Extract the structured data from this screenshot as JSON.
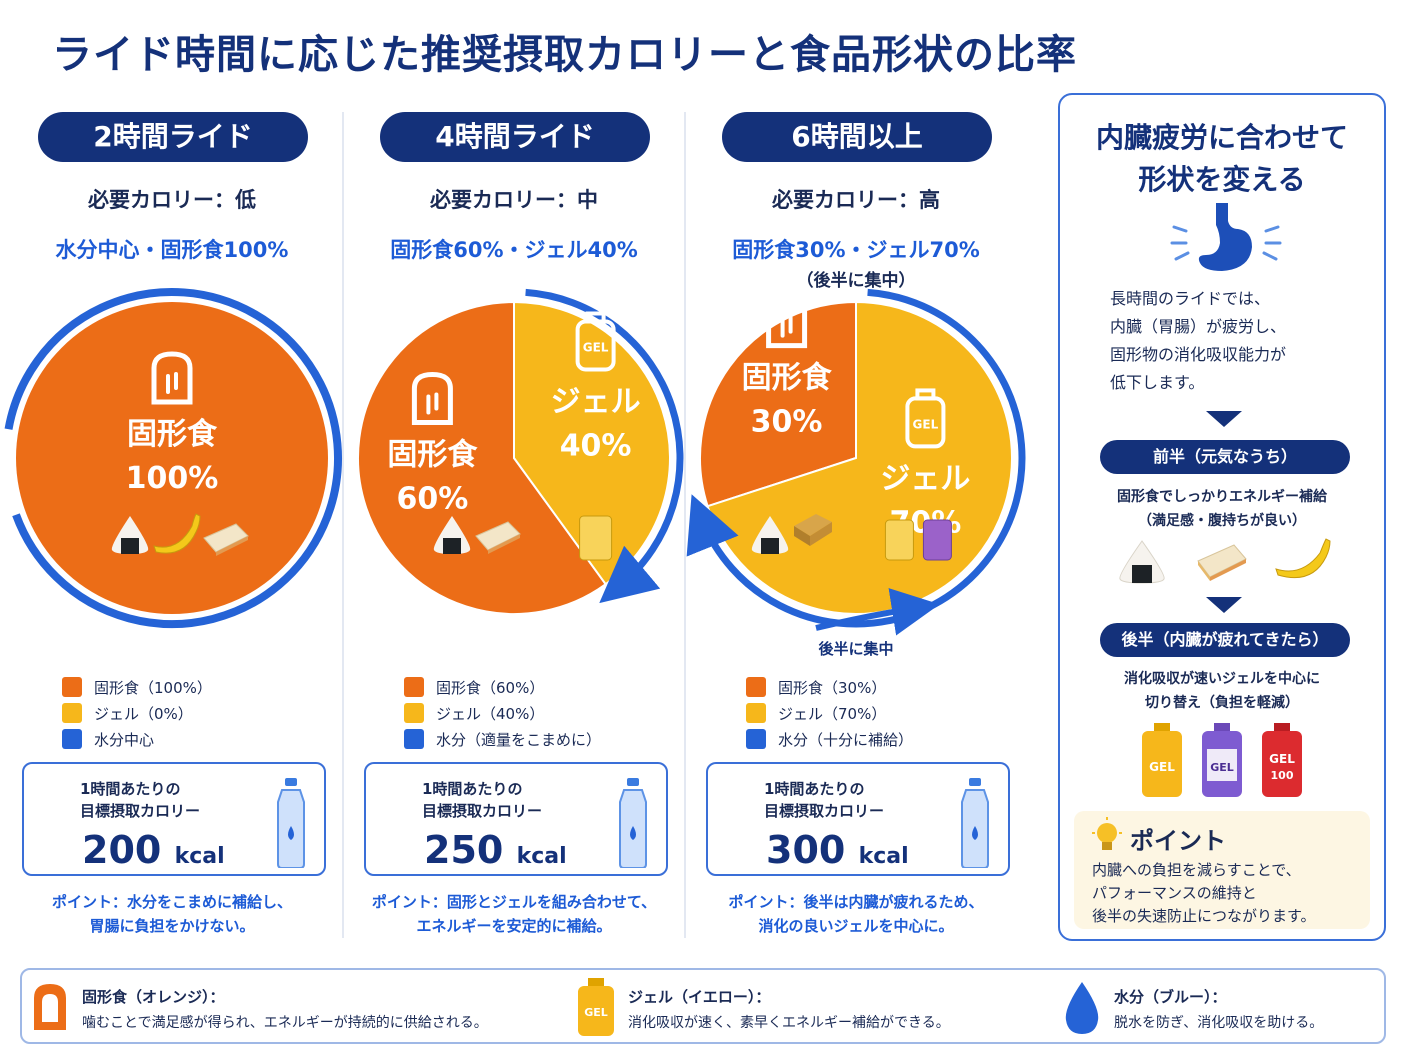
{
  "title": "ライド時間に応じた推奨摂取カロリーと食品形状の比率",
  "colors": {
    "solid": "#ec6d17",
    "gel": "#f6b71b",
    "water": "#2563d6",
    "navy": "#14317a"
  },
  "panels": [
    {
      "heading": "2時間ライド",
      "requirement": "必要カロリー：低",
      "ratio": "水分中心・固形食100%",
      "ratio_sub": "",
      "slices": {
        "solid_label": "固形食",
        "solid_pct": "100%",
        "gel_label": "",
        "gel_pct": ""
      },
      "arc_label": "",
      "legend": [
        "固形食（100%）",
        "ジェル（0%）",
        "水分中心"
      ],
      "kcal_label_1": "1時間あたりの",
      "kcal_label_2": "目標摂取カロリー",
      "kcal_value": "200",
      "kcal_unit": "kcal",
      "point_1": "ポイント：水分をこまめに補給し、",
      "point_2": "胃腸に負担をかけない。"
    },
    {
      "heading": "4時間ライド",
      "requirement": "必要カロリー：中",
      "ratio": "固形食60%・ジェル40%",
      "ratio_sub": "",
      "slices": {
        "solid_label": "固形食",
        "solid_pct": "60%",
        "gel_label": "ジェル",
        "gel_pct": "40%"
      },
      "arc_label": "",
      "legend": [
        "固形食（60%）",
        "ジェル（40%）",
        "水分（適量をこまめに）"
      ],
      "kcal_label_1": "1時間あたりの",
      "kcal_label_2": "目標摂取カロリー",
      "kcal_value": "250",
      "kcal_unit": "kcal",
      "point_1": "ポイント：固形とジェルを組み合わせて、",
      "point_2": "エネルギーを安定的に補給。"
    },
    {
      "heading": "6時間以上",
      "requirement": "必要カロリー：高",
      "ratio": "固形食30%・ジェル70%",
      "ratio_sub": "（後半に集中）",
      "slices": {
        "solid_label": "固形食",
        "solid_pct": "30%",
        "gel_label": "ジェル",
        "gel_pct": "70%"
      },
      "arc_label": "後半に集中",
      "legend": [
        "固形食（30%）",
        "ジェル（70%）",
        "水分（十分に補給）"
      ],
      "kcal_label_1": "1時間あたりの",
      "kcal_label_2": "目標摂取カロリー",
      "kcal_value": "300",
      "kcal_unit": "kcal",
      "point_1": "ポイント：後半は内臓が疲れるため、",
      "point_2": "消化の良いジェルを中心に。"
    }
  ],
  "chart_data": [
    {
      "type": "pie",
      "title": "2時間ライド",
      "categories": [
        "固形食",
        "ジェル"
      ],
      "values": [
        100,
        0
      ],
      "kcal_per_hour": 200
    },
    {
      "type": "pie",
      "title": "4時間ライド",
      "categories": [
        "固形食",
        "ジェル"
      ],
      "values": [
        60,
        40
      ],
      "kcal_per_hour": 250
    },
    {
      "type": "pie",
      "title": "6時間以上",
      "categories": [
        "固形食",
        "ジェル"
      ],
      "values": [
        30,
        70
      ],
      "kcal_per_hour": 300
    }
  ],
  "side": {
    "title_1": "内臓疲労に合わせて",
    "title_2": "形状を変える",
    "text": [
      "長時間のライドでは、",
      "内臓（胃腸）が疲労し、",
      "固形物の消化吸収能力が",
      "低下します。"
    ],
    "first_half_title": "前半（元気なうち）",
    "first_half_text_1": "固形食でしっかりエネルギー補給",
    "first_half_text_2": "（満足感・腹持ちが良い）",
    "second_half_title": "後半（内臓が疲れてきたら）",
    "second_half_text_1": "消化吸収が速いジェルを中心に",
    "second_half_text_2": "切り替え（負担を軽減）",
    "gel_pack_labels": [
      "GEL",
      "GEL",
      "GEL",
      "100"
    ],
    "point_title": "ポイント",
    "point_text": [
      "内臓への負担を減らすことで、",
      "パフォーマンスの維持と",
      "後半の失速防止につながります。"
    ]
  },
  "gel_icon_text": "GEL",
  "footer": [
    {
      "title": "固形食（オレンジ）：",
      "desc": "噛むことで満足感が得られ、エネルギーが持続的に供給される。",
      "icon": "bread-icon"
    },
    {
      "title": "ジェル（イエロー）：",
      "desc": "消化吸収が速く、素早くエネルギー補給ができる。",
      "icon": "gel-icon"
    },
    {
      "title": "水分（ブルー）：",
      "desc": "脱水を防ぎ、消化吸収を助ける。",
      "icon": "water-drop-icon"
    }
  ]
}
